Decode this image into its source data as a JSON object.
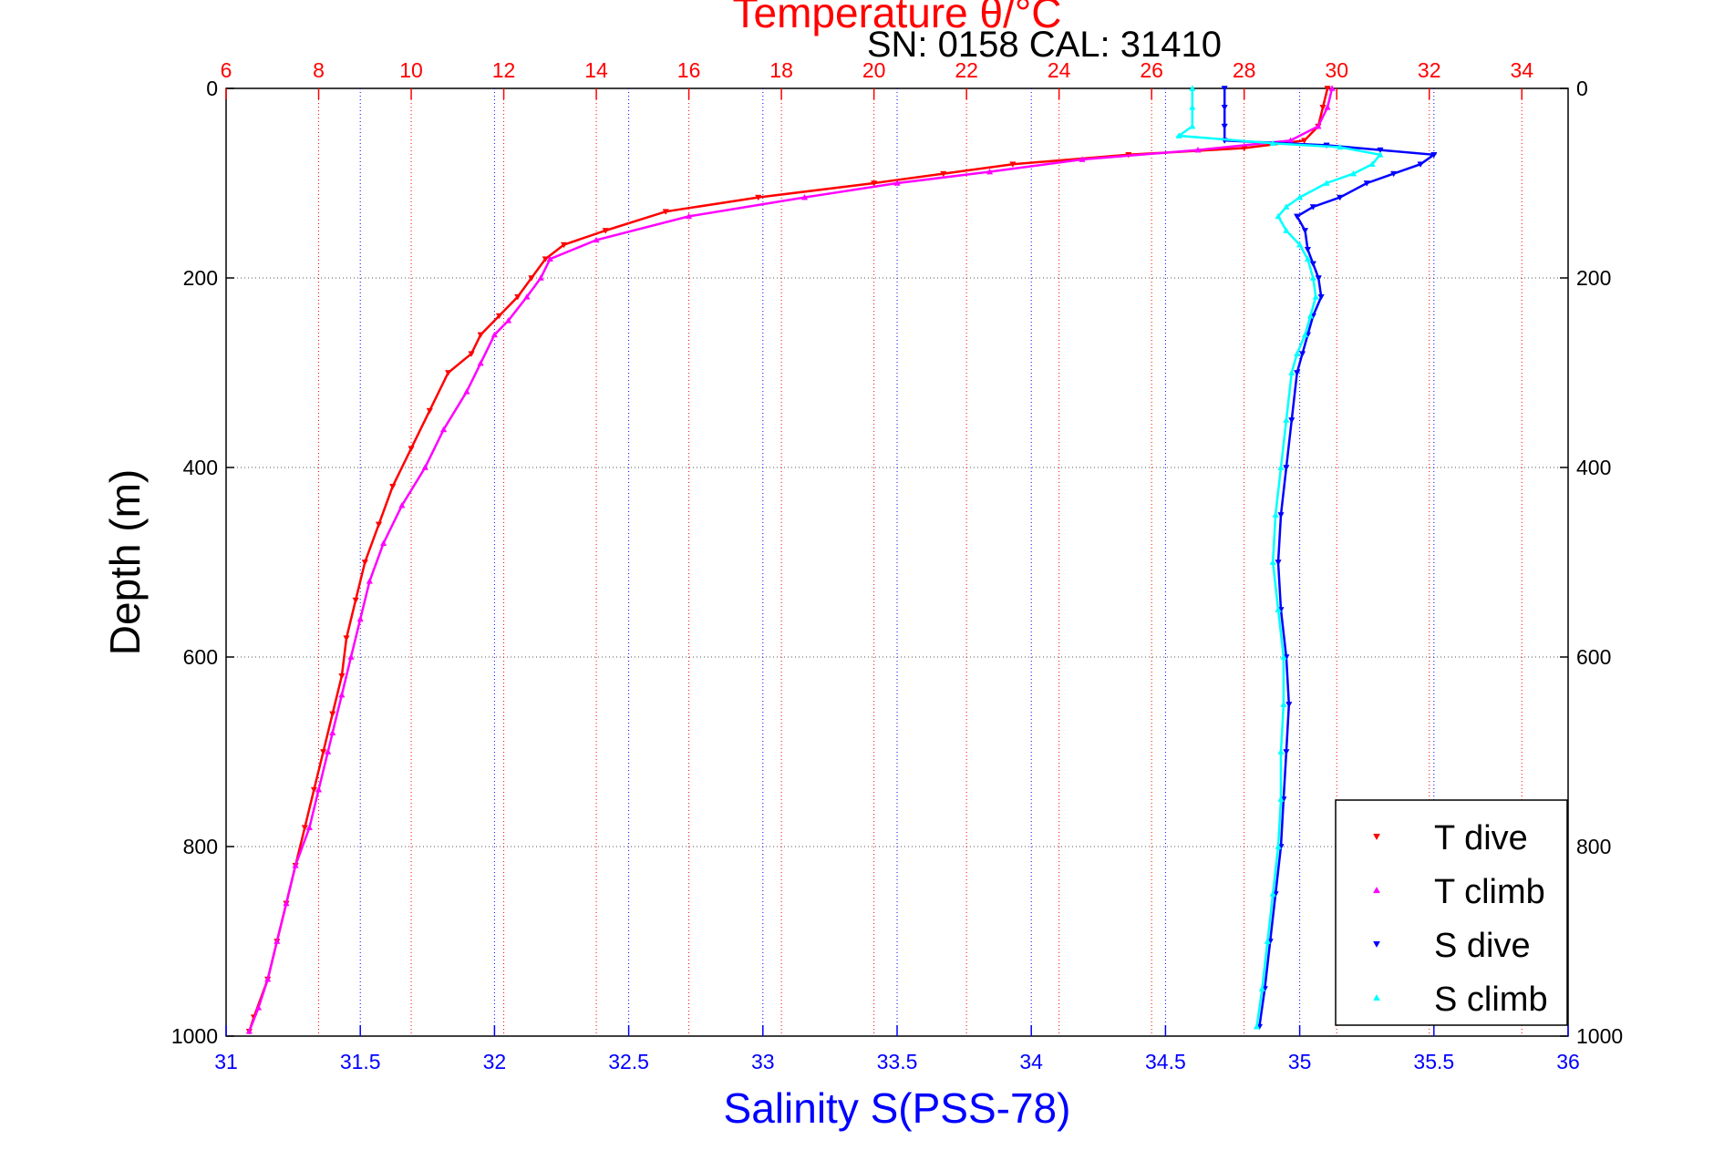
{
  "chart_data": {
    "type": "scatter",
    "title": "Temperature θ/°C",
    "subtitle": "SN: 0158  CAL: 31410",
    "xlabel": "Salinity S(PSS-78)",
    "x2label": "Temperature θ/°C",
    "ylabel": "Depth (m)",
    "xlim": [
      31,
      36
    ],
    "x2lim": [
      6,
      35
    ],
    "ylim": [
      0,
      1000
    ],
    "y_reversed": true,
    "xticks": [
      31,
      31.5,
      32,
      32.5,
      33,
      33.5,
      34,
      34.5,
      35,
      35.5,
      36
    ],
    "xtick_labels": [
      "31",
      "31.5",
      "32",
      "32.5",
      "33",
      "33.5",
      "34",
      "34.5",
      "35",
      "35.5",
      "36"
    ],
    "x2ticks": [
      6,
      8,
      10,
      12,
      14,
      16,
      18,
      20,
      22,
      24,
      26,
      28,
      30,
      32,
      34
    ],
    "x2tick_labels": [
      "6",
      "8",
      "10",
      "12",
      "14",
      "16",
      "18",
      "20",
      "22",
      "24",
      "26",
      "28",
      "30",
      "32",
      "34"
    ],
    "yticks": [
      0,
      200,
      400,
      600,
      800,
      1000
    ],
    "ytick_labels": [
      "0",
      "200",
      "400",
      "600",
      "800",
      "1000"
    ],
    "grid": true,
    "legend_position": "bottom-right",
    "series": [
      {
        "name": "T dive",
        "axis": "temperature",
        "color": "#ff0000",
        "marker": "triangle-down",
        "points": [
          [
            29.8,
            0
          ],
          [
            29.7,
            20
          ],
          [
            29.6,
            40
          ],
          [
            29.3,
            55
          ],
          [
            28.0,
            63
          ],
          [
            25.5,
            70
          ],
          [
            23.0,
            80
          ],
          [
            21.5,
            90
          ],
          [
            20.0,
            100
          ],
          [
            17.5,
            115
          ],
          [
            15.5,
            130
          ],
          [
            14.2,
            150
          ],
          [
            13.3,
            165
          ],
          [
            12.9,
            180
          ],
          [
            12.6,
            200
          ],
          [
            12.3,
            220
          ],
          [
            11.9,
            240
          ],
          [
            11.5,
            260
          ],
          [
            11.3,
            280
          ],
          [
            10.8,
            300
          ],
          [
            10.4,
            340
          ],
          [
            10.0,
            380
          ],
          [
            9.6,
            420
          ],
          [
            9.3,
            460
          ],
          [
            9.0,
            500
          ],
          [
            8.8,
            540
          ],
          [
            8.6,
            580
          ],
          [
            8.5,
            620
          ],
          [
            8.3,
            660
          ],
          [
            8.1,
            700
          ],
          [
            7.9,
            740
          ],
          [
            7.7,
            780
          ],
          [
            7.5,
            820
          ],
          [
            7.3,
            860
          ],
          [
            7.1,
            900
          ],
          [
            6.9,
            940
          ],
          [
            6.6,
            980
          ],
          [
            6.5,
            995
          ]
        ]
      },
      {
        "name": "T climb",
        "axis": "temperature",
        "color": "#ff00ff",
        "marker": "triangle-up",
        "points": [
          [
            29.9,
            0
          ],
          [
            29.8,
            20
          ],
          [
            29.6,
            40
          ],
          [
            29.0,
            55
          ],
          [
            27.0,
            65
          ],
          [
            24.5,
            75
          ],
          [
            22.5,
            88
          ],
          [
            20.5,
            100
          ],
          [
            18.5,
            115
          ],
          [
            16.0,
            135
          ],
          [
            14.0,
            160
          ],
          [
            13.0,
            180
          ],
          [
            12.8,
            200
          ],
          [
            12.5,
            220
          ],
          [
            12.1,
            245
          ],
          [
            11.8,
            260
          ],
          [
            11.5,
            290
          ],
          [
            11.2,
            320
          ],
          [
            10.7,
            360
          ],
          [
            10.3,
            400
          ],
          [
            9.8,
            440
          ],
          [
            9.4,
            480
          ],
          [
            9.1,
            520
          ],
          [
            8.9,
            560
          ],
          [
            8.7,
            600
          ],
          [
            8.5,
            640
          ],
          [
            8.3,
            680
          ],
          [
            8.2,
            700
          ],
          [
            8.0,
            740
          ],
          [
            7.8,
            780
          ],
          [
            7.5,
            820
          ],
          [
            7.3,
            860
          ],
          [
            7.1,
            900
          ],
          [
            6.9,
            940
          ],
          [
            6.7,
            970
          ],
          [
            6.5,
            995
          ]
        ]
      },
      {
        "name": "S dive",
        "axis": "salinity",
        "color": "#0000ff",
        "marker": "triangle-down",
        "points": [
          [
            34.72,
            0
          ],
          [
            34.72,
            20
          ],
          [
            34.72,
            40
          ],
          [
            34.72,
            55
          ],
          [
            35.1,
            60
          ],
          [
            35.3,
            65
          ],
          [
            35.5,
            70
          ],
          [
            35.45,
            80
          ],
          [
            35.35,
            90
          ],
          [
            35.25,
            100
          ],
          [
            35.15,
            115
          ],
          [
            35.05,
            125
          ],
          [
            34.99,
            135
          ],
          [
            35.02,
            150
          ],
          [
            35.03,
            170
          ],
          [
            35.05,
            185
          ],
          [
            35.07,
            200
          ],
          [
            35.08,
            220
          ],
          [
            35.05,
            240
          ],
          [
            35.03,
            260
          ],
          [
            35.01,
            280
          ],
          [
            34.99,
            300
          ],
          [
            34.97,
            350
          ],
          [
            34.95,
            400
          ],
          [
            34.93,
            450
          ],
          [
            34.92,
            500
          ],
          [
            34.93,
            550
          ],
          [
            34.95,
            600
          ],
          [
            34.96,
            650
          ],
          [
            34.95,
            700
          ],
          [
            34.94,
            750
          ],
          [
            34.93,
            800
          ],
          [
            34.91,
            850
          ],
          [
            34.89,
            900
          ],
          [
            34.87,
            950
          ],
          [
            34.85,
            990
          ]
        ]
      },
      {
        "name": "S climb",
        "axis": "salinity",
        "color": "#00ffff",
        "marker": "triangle-up",
        "points": [
          [
            34.6,
            0
          ],
          [
            34.6,
            20
          ],
          [
            34.6,
            40
          ],
          [
            34.55,
            50
          ],
          [
            34.9,
            58
          ],
          [
            35.15,
            62
          ],
          [
            35.3,
            70
          ],
          [
            35.27,
            80
          ],
          [
            35.2,
            90
          ],
          [
            35.1,
            100
          ],
          [
            35.0,
            115
          ],
          [
            34.95,
            125
          ],
          [
            34.92,
            135
          ],
          [
            34.95,
            150
          ],
          [
            35.0,
            165
          ],
          [
            35.03,
            180
          ],
          [
            35.05,
            200
          ],
          [
            35.06,
            220
          ],
          [
            35.04,
            240
          ],
          [
            35.02,
            260
          ],
          [
            34.99,
            280
          ],
          [
            34.97,
            300
          ],
          [
            34.95,
            350
          ],
          [
            34.93,
            400
          ],
          [
            34.91,
            450
          ],
          [
            34.9,
            500
          ],
          [
            34.92,
            550
          ],
          [
            34.94,
            600
          ],
          [
            34.94,
            650
          ],
          [
            34.93,
            700
          ],
          [
            34.93,
            750
          ],
          [
            34.92,
            800
          ],
          [
            34.9,
            850
          ],
          [
            34.88,
            900
          ],
          [
            34.86,
            950
          ],
          [
            34.84,
            990
          ]
        ]
      }
    ]
  }
}
